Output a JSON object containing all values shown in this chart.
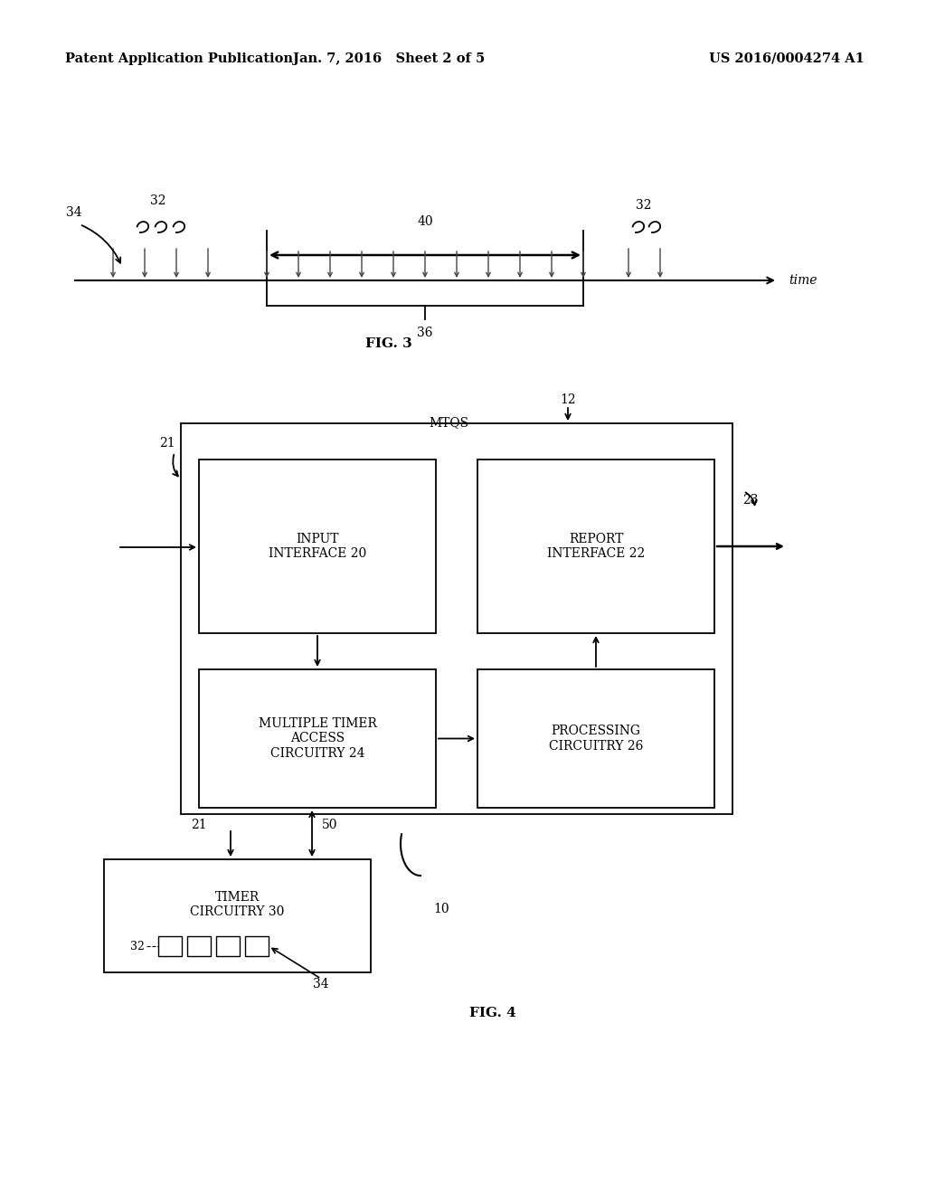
{
  "bg_color": "#ffffff",
  "header_left": "Patent Application Publication",
  "header_center": "Jan. 7, 2016   Sheet 2 of 5",
  "header_right": "US 2016/0004274 A1",
  "fig3_label": "FIG. 3",
  "fig4_label": "FIG. 4",
  "time_label": "time",
  "label_32_left": "32",
  "label_34": "34",
  "label_40": "40",
  "label_36": "36",
  "label_32_right": "32",
  "label_21_top": "21",
  "label_12": "12",
  "label_23": "23",
  "label_mtqs": "MTQS",
  "label_21_bot": "21",
  "label_50": "50",
  "label_10": "10",
  "box_input": "INPUT\nINTERFACE 20",
  "box_report": "REPORT\nINTERFACE 22",
  "box_multiple": "MULTIPLE TIMER\nACCESS\nCIRCUITRY 24",
  "box_processing": "PROCESSING\nCIRCUITRY 26",
  "box_timer": "TIMER\nCIRCUITRY 30",
  "label_32_small": "32",
  "label_34_small": "34"
}
